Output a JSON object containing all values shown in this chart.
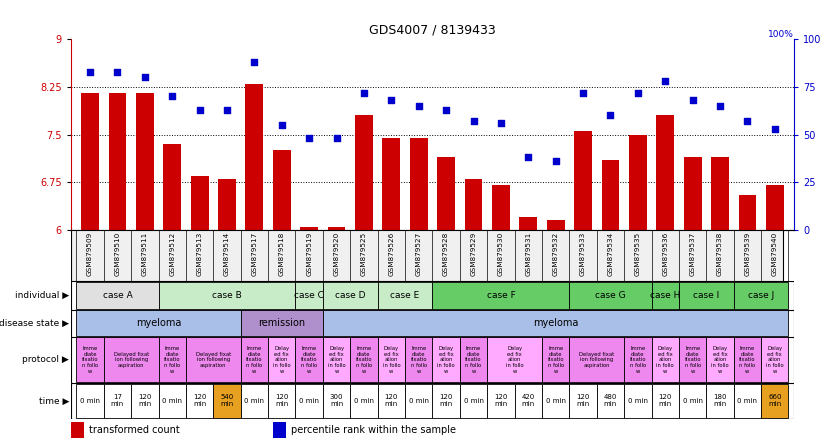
{
  "title": "GDS4007 / 8139433",
  "samples": [
    "GSM879509",
    "GSM879510",
    "GSM879511",
    "GSM879512",
    "GSM879513",
    "GSM879514",
    "GSM879517",
    "GSM879518",
    "GSM879519",
    "GSM879520",
    "GSM879525",
    "GSM879526",
    "GSM879527",
    "GSM879528",
    "GSM879529",
    "GSM879530",
    "GSM879531",
    "GSM879532",
    "GSM879533",
    "GSM879534",
    "GSM879535",
    "GSM879536",
    "GSM879537",
    "GSM879538",
    "GSM879539",
    "GSM879540"
  ],
  "bar_values": [
    8.15,
    8.15,
    8.15,
    7.35,
    6.85,
    6.8,
    8.3,
    7.25,
    6.05,
    6.05,
    7.8,
    7.45,
    7.45,
    7.15,
    6.8,
    6.7,
    6.2,
    6.15,
    7.55,
    7.1,
    7.5,
    7.8,
    7.15,
    7.15,
    6.55,
    6.7
  ],
  "dot_values": [
    83,
    83,
    80,
    70,
    63,
    63,
    88,
    55,
    48,
    48,
    72,
    68,
    65,
    63,
    57,
    56,
    38,
    36,
    72,
    60,
    72,
    78,
    68,
    65,
    57,
    53
  ],
  "ylim_left": [
    6,
    9
  ],
  "ylim_right": [
    0,
    100
  ],
  "yticks_left": [
    6,
    6.75,
    7.5,
    8.25,
    9
  ],
  "yticks_right": [
    0,
    25,
    50,
    75,
    100
  ],
  "bar_color": "#cc0000",
  "dot_color": "#0000cc",
  "individual_labels": [
    {
      "label": "case A",
      "start": 0,
      "end": 2,
      "color": "#e0e0e0"
    },
    {
      "label": "case B",
      "start": 3,
      "end": 7,
      "color": "#c8ecc8"
    },
    {
      "label": "case C",
      "start": 8,
      "end": 8,
      "color": "#c8ecc8"
    },
    {
      "label": "case D",
      "start": 9,
      "end": 10,
      "color": "#c8ecc8"
    },
    {
      "label": "case E",
      "start": 11,
      "end": 12,
      "color": "#c8ecc8"
    },
    {
      "label": "case F",
      "start": 13,
      "end": 17,
      "color": "#66cc66"
    },
    {
      "label": "case G",
      "start": 18,
      "end": 20,
      "color": "#66cc66"
    },
    {
      "label": "case H",
      "start": 21,
      "end": 21,
      "color": "#66cc66"
    },
    {
      "label": "case I",
      "start": 22,
      "end": 23,
      "color": "#66cc66"
    },
    {
      "label": "case J",
      "start": 24,
      "end": 25,
      "color": "#66cc66"
    }
  ],
  "disease_labels": [
    {
      "label": "myeloma",
      "start": 0,
      "end": 5,
      "color": "#aabfe8"
    },
    {
      "label": "remission",
      "start": 6,
      "end": 8,
      "color": "#b899d4"
    },
    {
      "label": "myeloma",
      "start": 9,
      "end": 25,
      "color": "#aabfe8"
    }
  ],
  "protocol_groups": [
    {
      "start": 0,
      "end": 0,
      "color": "#ee88ee",
      "label": "Imme\ndiate\nfixatio\nn follo\nw"
    },
    {
      "start": 1,
      "end": 2,
      "color": "#ee88ee",
      "label": "Delayed fixat\nion following\naspiration"
    },
    {
      "start": 3,
      "end": 3,
      "color": "#ee88ee",
      "label": "Imme\ndiate\nfixatio\nn follo\nw"
    },
    {
      "start": 4,
      "end": 5,
      "color": "#ee88ee",
      "label": "Delayed fixat\nion following\naspiration"
    },
    {
      "start": 6,
      "end": 6,
      "color": "#ee88ee",
      "label": "Imme\ndiate\nfixatio\nn follo\nw"
    },
    {
      "start": 7,
      "end": 7,
      "color": "#ffaaff",
      "label": "Delay\ned fix\nation\nin follo\nw"
    },
    {
      "start": 8,
      "end": 8,
      "color": "#ee88ee",
      "label": "Imme\ndiate\nfixatio\nn follo\nw"
    },
    {
      "start": 9,
      "end": 9,
      "color": "#ffaaff",
      "label": "Delay\ned fix\nation\nin follo\nw"
    },
    {
      "start": 10,
      "end": 10,
      "color": "#ee88ee",
      "label": "Imme\ndiate\nfixatio\nn follo\nw"
    },
    {
      "start": 11,
      "end": 11,
      "color": "#ffaaff",
      "label": "Delay\ned fix\nation\nin follo\nw"
    },
    {
      "start": 12,
      "end": 12,
      "color": "#ee88ee",
      "label": "Imme\ndiate\nfixatio\nn follo\nw"
    },
    {
      "start": 13,
      "end": 13,
      "color": "#ffaaff",
      "label": "Delay\ned fix\nation\nin follo\nw"
    },
    {
      "start": 14,
      "end": 14,
      "color": "#ee88ee",
      "label": "Imme\ndiate\nfixatio\nn follo\nw"
    },
    {
      "start": 15,
      "end": 16,
      "color": "#ffaaff",
      "label": "Delay\ned fix\nation\nin follo\nw"
    },
    {
      "start": 17,
      "end": 17,
      "color": "#ee88ee",
      "label": "Imme\ndiate\nfixatio\nn follo\nw"
    },
    {
      "start": 18,
      "end": 19,
      "color": "#ee88ee",
      "label": "Delayed fixat\nion following\naspiration"
    },
    {
      "start": 20,
      "end": 20,
      "color": "#ee88ee",
      "label": "Imme\ndiate\nfixatio\nn follo\nw"
    },
    {
      "start": 21,
      "end": 21,
      "color": "#ffaaff",
      "label": "Delay\ned fix\nation\nin follo\nw"
    },
    {
      "start": 22,
      "end": 22,
      "color": "#ee88ee",
      "label": "Imme\ndiate\nfixatio\nn follo\nw"
    },
    {
      "start": 23,
      "end": 23,
      "color": "#ffaaff",
      "label": "Delay\ned fix\nation\nin follo\nw"
    },
    {
      "start": 24,
      "end": 24,
      "color": "#ee88ee",
      "label": "Imme\ndiate\nfixatio\nn follo\nw"
    },
    {
      "start": 25,
      "end": 25,
      "color": "#ffaaff",
      "label": "Delay\ned fix\nation\nin follo\nw"
    }
  ],
  "time_values": [
    "0 min",
    "17\nmin",
    "120\nmin",
    "0 min",
    "120\nmin",
    "540\nmin",
    "0 min",
    "120\nmin",
    "0 min",
    "300\nmin",
    "0 min",
    "120\nmin",
    "0 min",
    "120\nmin",
    "0 min",
    "120\nmin",
    "420\nmin",
    "0 min",
    "120\nmin",
    "480\nmin",
    "0 min",
    "120\nmin",
    "0 min",
    "180\nmin",
    "0 min",
    "660\nmin"
  ],
  "time_colors": [
    "#ffffff",
    "#ffffff",
    "#ffffff",
    "#ffffff",
    "#ffffff",
    "#e8a020",
    "#ffffff",
    "#ffffff",
    "#ffffff",
    "#ffffff",
    "#ffffff",
    "#ffffff",
    "#ffffff",
    "#ffffff",
    "#ffffff",
    "#ffffff",
    "#ffffff",
    "#ffffff",
    "#ffffff",
    "#ffffff",
    "#ffffff",
    "#ffffff",
    "#ffffff",
    "#ffffff",
    "#ffffff",
    "#e8a020"
  ]
}
